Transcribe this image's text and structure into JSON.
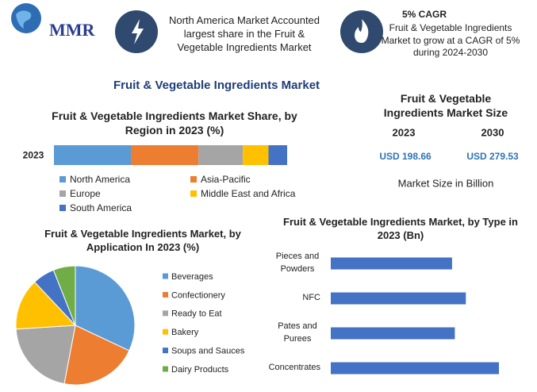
{
  "header": {
    "logo": "MMR",
    "fact": "North America Market Accounted largest share in the Fruit & Vegetable Ingredients Market",
    "cagr_title": "5% CAGR",
    "cagr_text": "Fruit & Vegetable Ingredients Market to grow at a CAGR of 5% during 2024-2030"
  },
  "title": "Fruit & Vegetable Ingredients Market",
  "market_size": {
    "title": "Fruit & Vegetable Ingredients Market Size",
    "years": [
      "2023",
      "2030"
    ],
    "values": [
      "USD 198.66",
      "USD 279.53"
    ],
    "note": "Market Size in Billion"
  },
  "chart_data": [
    {
      "type": "stacked_bar",
      "title": "Fruit & Vegetable Ingredients Market Share, by Region in 2023 (%)",
      "categories": [
        "2023"
      ],
      "series": [
        {
          "name": "North America",
          "color": "#5b9bd5",
          "values": [
            33
          ]
        },
        {
          "name": "Asia-Pacific",
          "color": "#ed7d31",
          "values": [
            29
          ]
        },
        {
          "name": "Europe",
          "color": "#a5a5a5",
          "values": [
            19
          ]
        },
        {
          "name": "Middle East and Africa",
          "color": "#ffc000",
          "values": [
            11
          ]
        },
        {
          "name": "South America",
          "color": "#4472c4",
          "values": [
            8
          ]
        }
      ]
    },
    {
      "type": "pie",
      "title": "Fruit & Vegetable Ingredients Market, by Application In 2023 (%)",
      "categories": [
        "Beverages",
        "Confectionery",
        "Ready to Eat",
        "Bakery",
        "Soups and Sauces",
        "Dairy Products"
      ],
      "values": [
        32,
        21,
        21,
        14,
        6,
        6
      ],
      "colors": [
        "#5b9bd5",
        "#ed7d31",
        "#a5a5a5",
        "#ffc000",
        "#4472c4",
        "#70ad47"
      ]
    },
    {
      "type": "hbar",
      "title": "Fruit & Vegetable Ingredients Market, by Type in 2023 (Bn)",
      "categories": [
        "Pieces and Powders",
        "NFC",
        "Pates and Purees",
        "Concentrates"
      ],
      "values": [
        44,
        49,
        45,
        61
      ],
      "color": "#4472c4"
    }
  ]
}
